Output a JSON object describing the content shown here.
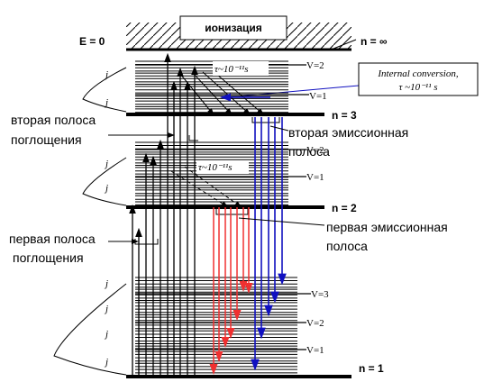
{
  "header": {
    "ionization": "ионизация",
    "energy_zero": "E = 0",
    "n_infinity": "n = ∞"
  },
  "levels": {
    "n3": "n = 3",
    "n2": "n = 2",
    "n1": "n = 1"
  },
  "vibrational": {
    "n3_v2": "V=2",
    "n3_v1": "V=1",
    "n2_v2": "V=2",
    "n2_v1": "V=1",
    "n1_v3": "V=3",
    "n1_v2": "V=2",
    "n1_v1": "V=1"
  },
  "rotational": [
    "j",
    "j",
    "j",
    "j",
    "j",
    "j",
    "j",
    "j"
  ],
  "lifetime": {
    "upper": "τ~10⁻¹¹s",
    "middle": "τ~10⁻¹¹s"
  },
  "internal_conversion": {
    "line1": "Internal conversion,",
    "line2": "τ ~10⁻¹¹ s"
  },
  "bands": {
    "second_absorption": [
      "вторая полоса",
      "поглощения"
    ],
    "second_emission": [
      "вторая эмиссионная",
      "полоса"
    ],
    "first_emission": [
      "первая эмиссионная",
      "полоса"
    ],
    "first_absorption": [
      "первая полоса",
      "поглощения"
    ]
  }
}
